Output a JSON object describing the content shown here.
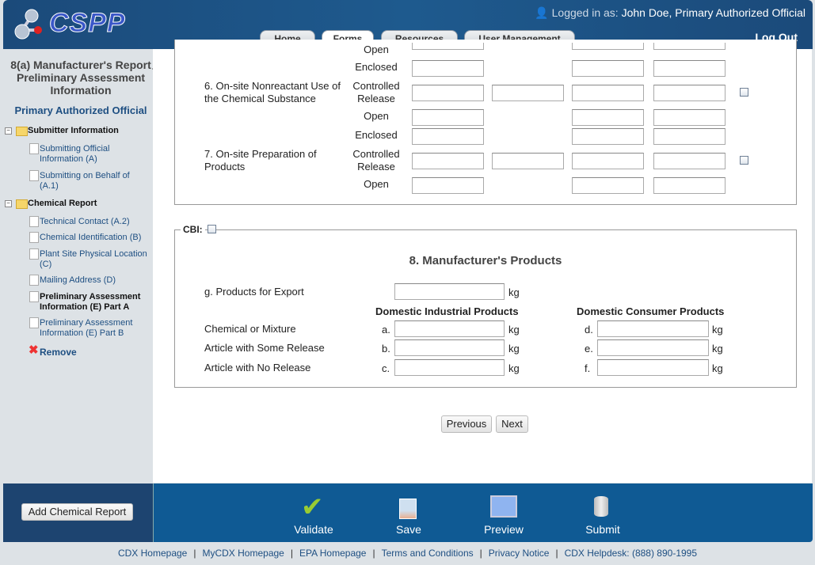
{
  "header": {
    "logo": "CSPP",
    "logged_in_label": "Logged in as:",
    "user": "John Doe, Primary Authorized Official",
    "logout": "Log Out",
    "tabs": [
      {
        "label": "Home"
      },
      {
        "label": "Forms",
        "active": true
      },
      {
        "label": "Resources"
      },
      {
        "label": "User Management"
      }
    ]
  },
  "sidebar": {
    "title": "8(a) Manufacturer's Report Preliminary Assessment Information",
    "role": "Primary Authorized Official",
    "folders": [
      {
        "label": "Submitter Information",
        "items": [
          "Submitting Official Information (A)",
          "Submitting on Behalf of (A.1)"
        ]
      },
      {
        "label": "Chemical Report",
        "items": [
          "Technical Contact (A.2)",
          "Chemical Identification (B)",
          "Plant Site Physical Location (C)",
          "Mailing Address (D)",
          "Preliminary Assessment Information (E) Part A",
          "Preliminary Assessment Information (E) Part B"
        ]
      }
    ],
    "current": "Preliminary Assessment Information (E) Part A",
    "remove": "Remove"
  },
  "section_top": {
    "rows": [
      {
        "label": "",
        "type": "Open"
      },
      {
        "label": "",
        "type": "Enclosed"
      },
      {
        "label": "6. On-site Nonreactant Use of the Chemical Substance",
        "type": "Controlled Release",
        "checkbox": true
      },
      {
        "label": "",
        "type": "Open"
      },
      {
        "label": "",
        "type": "Enclosed"
      },
      {
        "label": "7. On-site Preparation of Products",
        "type": "Controlled Release",
        "checkbox": true
      },
      {
        "label": "",
        "type": "Open"
      }
    ]
  },
  "products": {
    "cbi_label": "CBI:",
    "title": "8. Manufacturer's Products",
    "export_label": "g. Products for Export",
    "export_value": "",
    "unit": "kg",
    "col_industrial": "Domestic Industrial Products",
    "col_consumer": "Domestic Consumer Products",
    "rows": [
      {
        "label": "Chemical or Mixture",
        "ind_letter": "a.",
        "ind_value": "",
        "con_letter": "d.",
        "con_value": ""
      },
      {
        "label": "Article with Some Release",
        "ind_letter": "b.",
        "ind_value": "",
        "con_letter": "e.",
        "con_value": ""
      },
      {
        "label": "Article with No Release",
        "ind_letter": "c.",
        "ind_value": "",
        "con_letter": "f.",
        "con_value": ""
      }
    ]
  },
  "nav": {
    "previous": "Previous",
    "next": "Next"
  },
  "bottom": {
    "add_report": "Add Chemical Report",
    "actions": [
      "Validate",
      "Save",
      "Preview",
      "Submit"
    ]
  },
  "footer": {
    "links": [
      "CDX Homepage",
      "MyCDX Homepage",
      "EPA Homepage",
      "Terms and Conditions",
      "Privacy Notice",
      "CDX Helpdesk: (888) 890-1995"
    ]
  }
}
